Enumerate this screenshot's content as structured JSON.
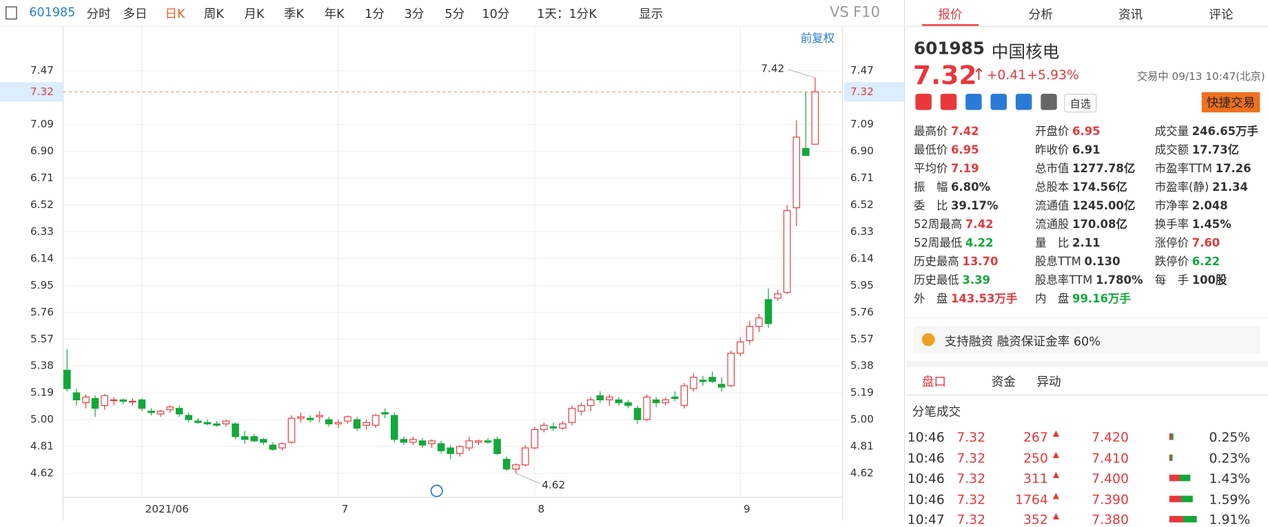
{
  "toolbar": {
    "code": "601985",
    "tabs": [
      "分时",
      "多日",
      "日K",
      "周K",
      "月K",
      "季K",
      "年K",
      "1分",
      "3分",
      "5分",
      "10分",
      "1天：1分K"
    ],
    "active": 2,
    "display": "显示",
    "vs": "VS",
    "f10": "F10"
  },
  "chart_data": {
    "type": "candlestick",
    "adjust_label": "前复权",
    "categories": [
      null,
      null,
      null,
      null,
      null,
      null,
      null,
      null,
      "2021/06",
      null,
      null,
      null,
      null,
      null,
      null,
      null,
      null,
      null,
      null,
      null,
      null,
      null,
      null,
      null,
      null,
      null,
      null,
      null,
      null,
      "7",
      null,
      null,
      null,
      null,
      null,
      null,
      null,
      null,
      null,
      null,
      null,
      null,
      null,
      null,
      null,
      null,
      null,
      null,
      null,
      null,
      "8",
      null,
      null,
      null,
      null,
      null,
      null,
      null,
      null,
      null,
      null,
      null,
      null,
      null,
      null,
      null,
      null,
      null,
      null,
      null,
      null,
      null,
      "9",
      null,
      null,
      null,
      null,
      null,
      null,
      null,
      null
    ],
    "open": [
      5.35,
      5.19,
      5.12,
      5.15,
      5.1,
      5.14,
      5.14,
      5.13,
      5.14,
      5.06,
      5.04,
      5.07,
      5.08,
      5.03,
      4.99,
      4.98,
      4.97,
      4.97,
      4.97,
      4.88,
      4.88,
      4.86,
      4.82,
      4.8,
      4.84,
      5.01,
      5.01,
      5.02,
      5.0,
      4.97,
      4.99,
      5.0,
      4.96,
      4.96,
      5.05,
      5.03,
      4.86,
      4.84,
      4.85,
      4.83,
      4.83,
      4.8,
      4.76,
      4.8,
      4.84,
      4.85,
      4.86,
      4.72,
      4.65,
      4.68,
      4.8,
      4.93,
      4.95,
      4.94,
      4.98,
      5.06,
      5.1,
      5.17,
      5.14,
      5.14,
      5.12,
      5.08,
      5.0,
      5.14,
      5.12,
      5.16,
      5.1,
      5.22,
      5.28,
      5.3,
      5.25,
      5.24,
      5.47,
      5.56,
      5.66,
      5.85,
      5.86,
      5.9,
      6.5,
      6.92,
      6.95
    ],
    "high": [
      5.5,
      5.22,
      5.18,
      5.17,
      5.18,
      5.16,
      5.15,
      5.15,
      5.15,
      5.08,
      5.07,
      5.1,
      5.1,
      5.05,
      5.01,
      5.0,
      4.99,
      5.0,
      4.98,
      4.92,
      4.9,
      4.87,
      4.84,
      4.84,
      5.03,
      5.05,
      5.03,
      5.06,
      5.02,
      5.0,
      5.03,
      5.02,
      5.0,
      5.04,
      5.08,
      5.05,
      4.88,
      4.88,
      4.87,
      4.86,
      4.85,
      4.82,
      4.82,
      4.88,
      4.86,
      4.87,
      4.88,
      4.74,
      4.69,
      4.82,
      4.95,
      4.98,
      4.98,
      4.99,
      5.1,
      5.12,
      5.16,
      5.2,
      5.18,
      5.16,
      5.14,
      5.1,
      5.18,
      5.16,
      5.16,
      5.2,
      5.26,
      5.33,
      5.31,
      5.34,
      5.3,
      5.49,
      5.58,
      5.7,
      5.75,
      5.93,
      5.92,
      6.52,
      7.12,
      7.32,
      7.42
    ],
    "low": [
      5.2,
      5.1,
      5.08,
      5.02,
      5.07,
      5.1,
      5.11,
      5.1,
      5.06,
      5.03,
      5.02,
      5.05,
      5.02,
      4.98,
      4.97,
      4.96,
      4.95,
      4.95,
      4.86,
      4.83,
      4.84,
      4.82,
      4.78,
      4.78,
      4.83,
      4.98,
      4.98,
      4.98,
      4.95,
      4.94,
      4.97,
      4.92,
      4.93,
      4.94,
      5.01,
      4.84,
      4.82,
      4.82,
      4.8,
      4.8,
      4.76,
      4.72,
      4.74,
      4.78,
      4.82,
      4.83,
      4.75,
      4.64,
      4.62,
      4.67,
      4.79,
      4.91,
      4.92,
      4.93,
      4.96,
      5.03,
      5.06,
      5.12,
      5.1,
      5.1,
      5.08,
      4.97,
      4.99,
      5.09,
      5.1,
      5.13,
      5.08,
      5.2,
      5.24,
      5.26,
      5.2,
      5.23,
      5.45,
      5.53,
      5.62,
      5.65,
      5.84,
      5.89,
      6.37,
      6.87,
      6.95
    ],
    "close": [
      5.22,
      5.14,
      5.16,
      5.08,
      5.17,
      5.14,
      5.13,
      5.13,
      5.08,
      5.05,
      5.06,
      5.09,
      5.04,
      5.0,
      4.98,
      4.97,
      4.96,
      4.99,
      4.88,
      4.86,
      4.85,
      4.84,
      4.79,
      4.83,
      5.01,
      5.02,
      5.0,
      5.03,
      4.97,
      4.98,
      5.02,
      4.94,
      4.98,
      5.03,
      5.04,
      4.86,
      4.84,
      4.86,
      4.82,
      4.85,
      4.78,
      4.76,
      4.81,
      4.85,
      4.85,
      4.84,
      4.76,
      4.65,
      4.68,
      4.8,
      4.93,
      4.96,
      4.94,
      4.97,
      5.08,
      5.1,
      5.14,
      5.14,
      5.16,
      5.12,
      5.1,
      5.0,
      5.16,
      5.12,
      5.14,
      5.15,
      5.24,
      5.3,
      5.27,
      5.27,
      5.23,
      5.47,
      5.55,
      5.66,
      5.72,
      5.68,
      5.89,
      6.48,
      7.0,
      6.87,
      7.32
    ],
    "up_color": "#e8383d",
    "down_color": "#13a83b",
    "ylim": [
      4.45,
      7.57
    ],
    "yticks": [
      4.62,
      4.81,
      {
        "value": 5,
        "label": "5.00"
      },
      5.19,
      5.38,
      5.57,
      5.76,
      5.95,
      6.14,
      6.33,
      6.52,
      6.71,
      {
        "value": 6.9,
        "label": "6.90"
      },
      7.09,
      7.47
    ],
    "last_price": 7.32,
    "max_label": "7.42",
    "min_label": "4.62",
    "grid": true
  },
  "quote": {
    "tabs": [
      "报价",
      "分析",
      "资讯",
      "评论"
    ],
    "active": 0,
    "code": "601985",
    "name": "中国核电",
    "price": "7.32",
    "change": "+0.41",
    "pct": "+5.93%",
    "status": "交易中 09/13 10:47(北京)",
    "watch": "自选",
    "trade": "快捷交易",
    "fields": [
      [
        [
          "最高价",
          "7.42",
          "#e8383d"
        ],
        [
          "开盘价",
          "6.95",
          "#e8383d"
        ],
        [
          "成交量",
          "246.65万手",
          null
        ]
      ],
      [
        [
          "最低价",
          "6.95",
          "#e8383d"
        ],
        [
          "昨收价",
          "6.91",
          null
        ],
        [
          "成交额",
          "17.73亿",
          null
        ]
      ],
      [
        [
          "平均价",
          "7.19",
          "#e8383d"
        ],
        [
          "总市值",
          "1277.78亿",
          null
        ],
        [
          "市盈率TTM",
          "17.26",
          null
        ]
      ],
      [
        [
          "振　幅",
          "6.80%",
          null
        ],
        [
          "总股本",
          "174.56亿",
          null
        ],
        [
          "市盈率(静)",
          "21.34",
          null
        ]
      ],
      [
        [
          "委　比",
          "39.17%",
          null
        ],
        [
          "流通值",
          "1245.00亿",
          null
        ],
        [
          "市净率",
          "2.048",
          null
        ]
      ],
      [
        [
          "52周最高",
          "7.42",
          "#e8383d"
        ],
        [
          "流通股",
          "170.08亿",
          null
        ],
        [
          "换手率",
          "1.45%",
          null
        ]
      ],
      [
        [
          "52周最低",
          "4.22",
          "#13a83b"
        ],
        [
          "量　比",
          "2.11",
          null
        ],
        [
          "涨停价",
          "7.60",
          "#e8383d"
        ]
      ],
      [
        [
          "历史最高",
          "13.70",
          "#e8383d"
        ],
        [
          "股息TTM",
          "0.130",
          null
        ],
        [
          "跌停价",
          "6.22",
          "#13a83b"
        ]
      ],
      [
        [
          "历史最低",
          "3.39",
          "#13a83b"
        ],
        [
          "股息率TTM",
          "1.780%",
          null
        ],
        [
          "每　手",
          "100股",
          null
        ]
      ],
      [
        [
          "外　盘",
          "143.53万手",
          "#e8383d"
        ],
        [
          "内　盘",
          "99.16万手",
          "#13a83b"
        ]
      ]
    ],
    "margin": "支持融资 融资保证金率 60%",
    "subtabs": [
      "盘口",
      "资金",
      "异动"
    ],
    "ticks_title": "分笔成交",
    "ticks": [
      [
        "10:46",
        "7.32",
        "267",
        "7.420",
        0.25,
        "0.25%"
      ],
      [
        "10:46",
        "7.32",
        "250",
        "7.410",
        0.23,
        "0.23%"
      ],
      [
        "10:46",
        "7.32",
        "311",
        "7.400",
        1.43,
        "1.43%"
      ],
      [
        "10:46",
        "7.32",
        "1764",
        "7.390",
        1.59,
        "1.59%"
      ],
      [
        "10:47",
        "7.32",
        "352",
        "7.380",
        1.91,
        "1.91%"
      ]
    ]
  }
}
